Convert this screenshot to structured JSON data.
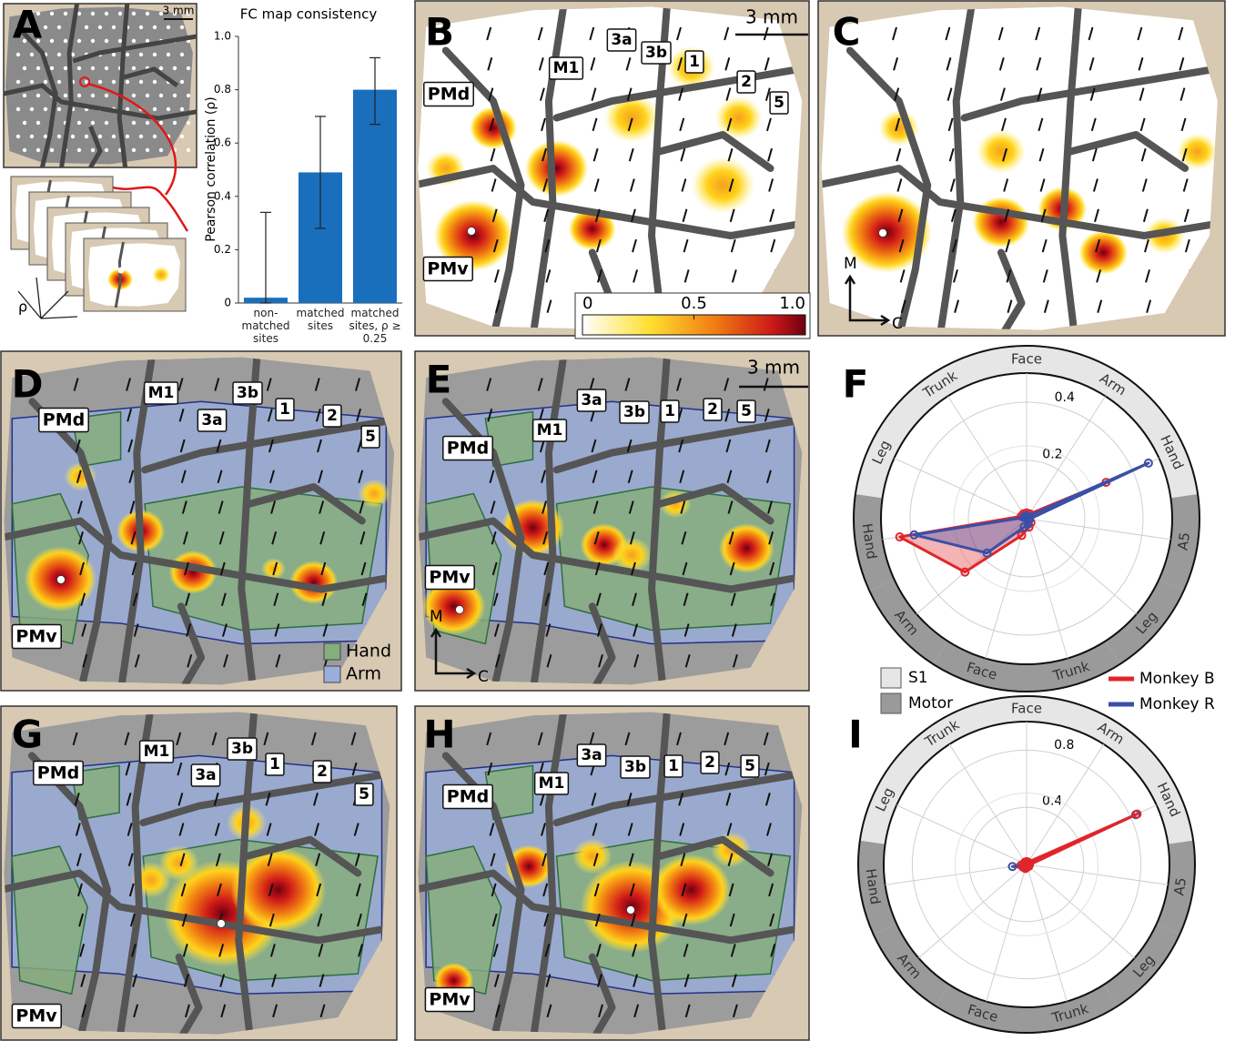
{
  "panels": {
    "A": {
      "letter": "A",
      "scale": "3 mm",
      "rho": "ρ"
    },
    "B": {
      "letter": "B",
      "scale": "3 mm",
      "areas": [
        "3a",
        "3b",
        "M1",
        "1",
        "PMd",
        "2",
        "5",
        "PMv"
      ],
      "colorbar": {
        "range": [
          0,
          1
        ],
        "ticks": [
          0,
          0.5,
          {
            "value": 1,
            "label": "1.0"
          }
        ]
      }
    },
    "C": {
      "letter": "C",
      "orientation": [
        "M",
        "C"
      ]
    },
    "D": {
      "letter": "D",
      "areas": [
        "M1",
        "3b",
        "1",
        "PMd",
        "3a",
        "2",
        "5",
        "PMv"
      ],
      "legend": [
        {
          "name": "Hand",
          "color": "#86ad7c"
        },
        {
          "name": "Arm",
          "color": "#9aaedb"
        }
      ]
    },
    "E": {
      "letter": "E",
      "scale": "3 mm",
      "areas": [
        "3a",
        "3b",
        "1",
        "2",
        "5",
        "M1",
        "PMd",
        "PMv"
      ],
      "orientation": [
        "M",
        "C"
      ]
    },
    "G": {
      "letter": "G",
      "areas": [
        "M1",
        "3b",
        "1",
        "2",
        "PMd",
        "3a",
        "5",
        "PMv"
      ]
    },
    "H": {
      "letter": "H",
      "areas": [
        "3a",
        "3b",
        "1",
        "2",
        "5",
        "M1",
        "PMd",
        "PMv"
      ]
    }
  },
  "chart_data": [
    {
      "type": "bar",
      "title": "FC map consistency",
      "y_label": "Pearson correlation (ρ)",
      "categories": [
        "non-matched sites",
        "matched sites",
        "matched sites, ρ ≥ 0.25"
      ],
      "values": [
        0.02,
        0.49,
        0.8
      ],
      "ci_low": [
        0,
        0.28,
        0.67
      ],
      "ci_high": [
        0.34,
        0.7,
        0.92
      ],
      "color": "#1a6fbd",
      "ylim": [
        0,
        1
      ],
      "yticks": [
        0,
        0.2,
        0.4,
        0.6,
        0.8,
        {
          "value": 1,
          "label": "1.0"
        }
      ]
    },
    {
      "type": "radar",
      "letter": "F",
      "categories": [
        "Face",
        "Arm",
        "Hand",
        "A5",
        "Leg",
        "Trunk",
        "Face",
        "Arm",
        "Hand",
        "Leg",
        "Trunk"
      ],
      "groups": [
        {
          "name": "S1",
          "color": "#e6e6e6"
        },
        {
          "name": "Motor",
          "color": "#9a9a9a"
        }
      ],
      "category_group": [
        0,
        0,
        0,
        1,
        1,
        1,
        1,
        1,
        1,
        0,
        0
      ],
      "rlim": [
        0,
        0.5
      ],
      "rticks": [
        0.2,
        0.4
      ],
      "series": [
        {
          "name": "Monkey B",
          "color": "#e0262b",
          "values": [
            0.02,
            0.02,
            0.3,
            0.01,
            0.02,
            0.03,
            0.06,
            0.28,
            0.44,
            0.02,
            0.02
          ]
        },
        {
          "name": "Monkey R",
          "color": "#3a4fa8",
          "values": [
            0.01,
            0.01,
            0.46,
            0.01,
            0.01,
            0.02,
            0.03,
            0.18,
            0.39,
            0.01,
            0.01
          ]
        }
      ]
    },
    {
      "type": "radar",
      "letter": "I",
      "categories": [
        "Face",
        "Arm",
        "Hand",
        "A5",
        "Leg",
        "Trunk",
        "Face",
        "Arm",
        "Hand",
        "Leg",
        "Trunk"
      ],
      "category_group": [
        0,
        0,
        0,
        1,
        1,
        1,
        1,
        1,
        1,
        0,
        0
      ],
      "rlim": [
        0,
        1
      ],
      "rticks": [
        0.4,
        0.8
      ],
      "series": [
        {
          "color": "#3a4fa8",
          "values": [
            0.01,
            0.01,
            0.84,
            0.01,
            0.01,
            0.01,
            0.02,
            0.03,
            0.1,
            0.01,
            0.01
          ]
        },
        {
          "color": "#e0262b",
          "values": [
            0.02,
            0.02,
            0.85,
            0.02,
            0.02,
            0.02,
            0.03,
            0.03,
            0.04,
            0.02,
            0.02
          ]
        }
      ]
    }
  ]
}
